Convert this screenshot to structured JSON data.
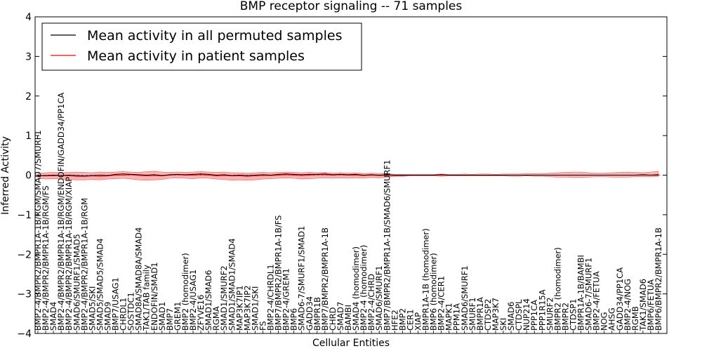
{
  "chart_data": {
    "type": "line",
    "title": "BMP receptor signaling -- 71 samples",
    "xlabel": "Cellular Entities",
    "ylabel": "Inferred Activity",
    "ylim": [
      -4,
      4
    ],
    "yticks": [
      4,
      3,
      2,
      1,
      0,
      -1,
      -2,
      -3,
      -4
    ],
    "ytick_labels": [
      "4",
      "3",
      "2",
      "1",
      "0",
      "−1",
      "−2",
      "−3",
      "−4"
    ],
    "legend_position": "top-left",
    "categories": [
      "BMP2-4/BMPR2/BMPR1A-1B/RGM/SMAD7/SMURF1",
      "BMP2-4/BMPR2/BMPR1A-1B/RGM/FS",
      "SMAD4",
      "BMP2-4/BMPR2/BMPR1A-1B/RGM/ENDOFIN/GADD34/PP1CA",
      "BMP2-4/BMPR2/BMPR1A-1B/RGM/XIAP",
      "SMAD6/SMURF1/SMAD5",
      "BMP2-4/BMPR2/BMPR1A-1B/RGM",
      "SMAD5/SKI",
      "SMAD5/SMAD5/SMAD4",
      "SMAD9",
      "BMP7/USAG1",
      "CHRDL1",
      "SOSTDC1",
      "SMAD8A/SMAD8A/SMAD4",
      "TAK1/TAB family",
      "ENDOFIN/SMAD1",
      "SMAD1",
      "BMP7",
      "GREM1",
      "BMP2 (homodimer)",
      "BMP2-4/USAG1",
      "ZFYVE16",
      "SMAD1/SMAD6",
      "RGMA",
      "SMAD1/SMURF2",
      "SMAD1/SMAD1/SMAD4",
      "MAP3K7IP1",
      "MAP3K7IP2",
      "SMAD1/SKI",
      "FS",
      "BMP2-4/CHRDL1",
      "BMP7/BMPR2/BMPR1A-1B/FS",
      "BMP2-4/GREM1",
      "BMP6",
      "SMAD6-7/SMURF1/SMAD1",
      "GADD34",
      "BMPR1B",
      "BMP7/BMPR2/BMPR1A-1B",
      "CHRD",
      "SMAD7",
      "BAMBI",
      "SMAD4 (homodimer)",
      "BMP2-4 (homodimer)",
      "BMP2-4/CHRD",
      "SMAD6/SMURF1",
      "BMP7/BMPR2/BMPR1A-1B/SMAD6/SMURF1",
      "HFE2",
      "BMP2",
      "CER1",
      "XIAP",
      "BMPR1A-1B (homodimer)",
      "BMP6 (homodimer)",
      "BMP2-4/CER1",
      "MAPK1",
      "PPM1A",
      "SMAD6/SMURF1",
      "SMURF1",
      "BMPR1A",
      "CTDSP2",
      "MAP3K7",
      "SKI",
      "SMAD6",
      "CTDSPL",
      "NUP214",
      "PPP1CA",
      "PPP1R15A",
      "SMURF2",
      "BMPR2 (homodimer)",
      "BMPR2",
      "CTDSP1",
      "BMPR1A-1B/BAMBI",
      "SMAD6-7/SMURF1",
      "BMP2-4/FETUA",
      "NOG",
      "AHSG",
      "GADD34/PP1CA",
      "BMP2-4/NOG",
      "RGMB",
      "TAK1/SMAD6",
      "BMP6/FETUA",
      "BMP6/BMPR2/BMPR1A-1B"
    ],
    "series": [
      {
        "name": "Mean activity in all permuted samples",
        "color": "#000000",
        "values": [
          -0.01,
          -0.01,
          0.0,
          -0.01,
          0.0,
          -0.01,
          -0.02,
          -0.01,
          0.0,
          -0.01,
          0.02,
          0.03,
          0.02,
          0.01,
          0.0,
          0.01,
          -0.01,
          0.01,
          0.02,
          0.01,
          0.02,
          0.03,
          0.02,
          0.0,
          0.01,
          -0.01,
          0.0,
          -0.01,
          0.0,
          0.01,
          0.0,
          0.02,
          0.03,
          0.02,
          0.01,
          0.02,
          0.02,
          0.03,
          0.01,
          0.02,
          0.01,
          0.02,
          0.0,
          0.01,
          0.0,
          0.01,
          0.0,
          0.0,
          0.0,
          0.0,
          0.0,
          0.0,
          0.01,
          0.0,
          0.0,
          0.0,
          0.0,
          0.0,
          0.0,
          0.0,
          0.0,
          0.0,
          0.0,
          0.0,
          0.0,
          0.0,
          0.0,
          0.0,
          0.0,
          0.0,
          0.0,
          0.0,
          0.0,
          0.0,
          0.0,
          0.0,
          0.0,
          0.0,
          0.01,
          0.0,
          0.0
        ]
      },
      {
        "name": "Mean activity in patient samples",
        "color": "#ff0000",
        "values": [
          -0.02,
          -0.02,
          -0.02,
          -0.01,
          -0.02,
          -0.03,
          -0.03,
          -0.02,
          -0.03,
          -0.02,
          0.0,
          0.0,
          0.01,
          -0.01,
          -0.02,
          -0.01,
          -0.02,
          0.0,
          0.01,
          0.0,
          0.0,
          0.01,
          0.0,
          -0.02,
          -0.01,
          -0.02,
          -0.02,
          -0.03,
          -0.02,
          -0.01,
          -0.01,
          0.0,
          0.01,
          0.0,
          -0.01,
          0.0,
          0.01,
          0.01,
          0.0,
          0.01,
          0.0,
          0.0,
          -0.01,
          0.0,
          -0.01,
          0.0,
          -0.01,
          -0.01,
          0.0,
          0.0,
          0.0,
          0.0,
          0.0,
          0.0,
          0.0,
          0.0,
          0.0,
          0.0,
          0.0,
          0.0,
          0.0,
          0.0,
          0.0,
          0.0,
          0.0,
          0.0,
          0.0,
          0.0,
          0.0,
          0.0,
          0.0,
          0.0,
          0.0,
          0.0,
          0.0,
          0.0,
          0.0,
          0.0,
          0.0,
          0.0,
          0.02
        ]
      }
    ],
    "band": {
      "upper": [
        0.05,
        0.06,
        0.07,
        0.06,
        0.07,
        0.08,
        0.07,
        0.06,
        0.08,
        0.07,
        0.08,
        0.09,
        0.08,
        0.07,
        0.09,
        0.1,
        0.08,
        0.07,
        0.08,
        0.07,
        0.08,
        0.09,
        0.08,
        0.07,
        0.08,
        0.06,
        0.06,
        0.05,
        0.06,
        0.07,
        0.06,
        0.07,
        0.08,
        0.07,
        0.06,
        0.07,
        0.06,
        0.07,
        0.05,
        0.06,
        0.05,
        0.06,
        0.04,
        0.05,
        0.04,
        0.04,
        0.02,
        0.02,
        0.02,
        0.02,
        0.02,
        0.02,
        0.03,
        0.02,
        0.02,
        0.03,
        0.02,
        0.03,
        0.03,
        0.02,
        0.03,
        0.03,
        0.03,
        0.04,
        0.04,
        0.04,
        0.05,
        0.06,
        0.07,
        0.08,
        0.08,
        0.06,
        0.05,
        0.05,
        0.06,
        0.07,
        0.08,
        0.07,
        0.06,
        0.08,
        0.1
      ],
      "lower": [
        -0.08,
        -0.1,
        -0.09,
        -0.1,
        -0.11,
        -0.12,
        -0.12,
        -0.11,
        -0.12,
        -0.1,
        -0.09,
        -0.08,
        -0.1,
        -0.12,
        -0.13,
        -0.12,
        -0.11,
        -0.08,
        -0.07,
        -0.08,
        -0.09,
        -0.07,
        -0.08,
        -0.1,
        -0.11,
        -0.13,
        -0.12,
        -0.13,
        -0.12,
        -0.1,
        -0.09,
        -0.08,
        -0.07,
        -0.08,
        -0.1,
        -0.09,
        -0.08,
        -0.07,
        -0.08,
        -0.07,
        -0.08,
        -0.07,
        -0.08,
        -0.06,
        -0.07,
        -0.05,
        -0.03,
        -0.03,
        -0.02,
        -0.02,
        -0.02,
        -0.02,
        -0.03,
        -0.02,
        -0.02,
        -0.02,
        -0.02,
        -0.02,
        -0.02,
        -0.02,
        -0.02,
        -0.03,
        -0.03,
        -0.02,
        -0.03,
        -0.03,
        -0.04,
        -0.05,
        -0.05,
        -0.06,
        -0.06,
        -0.05,
        -0.04,
        -0.04,
        -0.05,
        -0.05,
        -0.05,
        -0.04,
        -0.04,
        -0.04,
        -0.03
      ]
    }
  }
}
